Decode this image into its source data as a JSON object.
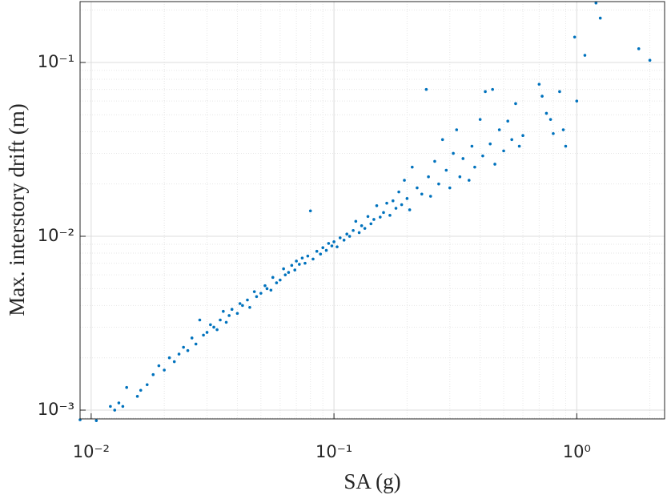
{
  "chart_data": {
    "type": "scatter",
    "xlabel": "SA (g)",
    "ylabel": "Max. interstory drift (m)",
    "xscale": "log",
    "yscale": "log",
    "grid": true,
    "minor_grid": true,
    "xlim": [
      0.009,
      2.3
    ],
    "ylim": [
      0.00089,
      0.224
    ],
    "xticks": [
      {
        "value": 0.01,
        "label": "10⁻²"
      },
      {
        "value": 0.1,
        "label": "10⁻¹"
      },
      {
        "value": 1,
        "label": "10⁰"
      }
    ],
    "yticks": [
      {
        "value": 0.001,
        "label": "10⁻³"
      },
      {
        "value": 0.01,
        "label": "10⁻²"
      },
      {
        "value": 0.1,
        "label": "10⁻¹"
      }
    ],
    "color": "#0072bd",
    "x": [
      0.009,
      0.0105,
      0.012,
      0.0125,
      0.013,
      0.0135,
      0.014,
      0.0155,
      0.016,
      0.017,
      0.018,
      0.019,
      0.02,
      0.021,
      0.022,
      0.023,
      0.024,
      0.025,
      0.026,
      0.027,
      0.028,
      0.029,
      0.03,
      0.031,
      0.032,
      0.033,
      0.034,
      0.035,
      0.036,
      0.037,
      0.038,
      0.04,
      0.041,
      0.042,
      0.044,
      0.045,
      0.047,
      0.048,
      0.05,
      0.052,
      0.053,
      0.055,
      0.056,
      0.058,
      0.06,
      0.062,
      0.063,
      0.065,
      0.067,
      0.069,
      0.07,
      0.072,
      0.074,
      0.076,
      0.078,
      0.08,
      0.082,
      0.085,
      0.088,
      0.09,
      0.093,
      0.095,
      0.098,
      0.1,
      0.103,
      0.106,
      0.11,
      0.113,
      0.116,
      0.12,
      0.123,
      0.127,
      0.13,
      0.134,
      0.138,
      0.142,
      0.146,
      0.15,
      0.155,
      0.16,
      0.165,
      0.17,
      0.175,
      0.18,
      0.185,
      0.19,
      0.195,
      0.2,
      0.205,
      0.21,
      0.22,
      0.23,
      0.24,
      0.245,
      0.25,
      0.26,
      0.27,
      0.28,
      0.29,
      0.3,
      0.31,
      0.32,
      0.33,
      0.34,
      0.36,
      0.37,
      0.38,
      0.4,
      0.41,
      0.42,
      0.44,
      0.45,
      0.46,
      0.48,
      0.5,
      0.52,
      0.54,
      0.56,
      0.58,
      0.6,
      0.7,
      0.72,
      0.75,
      0.78,
      0.8,
      0.85,
      0.88,
      0.9,
      0.98,
      1.0,
      1.08,
      1.2,
      1.25,
      1.8,
      2.0
    ],
    "y": [
      0.00088,
      0.00087,
      0.00105,
      0.001,
      0.0011,
      0.00105,
      0.00135,
      0.0012,
      0.0013,
      0.0014,
      0.0016,
      0.0018,
      0.0017,
      0.002,
      0.0019,
      0.0021,
      0.0023,
      0.0022,
      0.0026,
      0.0024,
      0.0033,
      0.0027,
      0.0028,
      0.0031,
      0.003,
      0.0029,
      0.0033,
      0.0037,
      0.0032,
      0.0035,
      0.0038,
      0.0036,
      0.0041,
      0.004,
      0.0043,
      0.0039,
      0.0048,
      0.0045,
      0.0047,
      0.0052,
      0.005,
      0.0049,
      0.0058,
      0.0054,
      0.0056,
      0.0065,
      0.006,
      0.0062,
      0.0068,
      0.0064,
      0.0072,
      0.0069,
      0.0075,
      0.007,
      0.0077,
      0.014,
      0.0074,
      0.0082,
      0.0079,
      0.0086,
      0.0083,
      0.0091,
      0.0088,
      0.0093,
      0.0087,
      0.0098,
      0.0095,
      0.0103,
      0.01,
      0.0108,
      0.0122,
      0.0105,
      0.0115,
      0.0111,
      0.013,
      0.0118,
      0.0125,
      0.015,
      0.0129,
      0.0137,
      0.0155,
      0.0132,
      0.016,
      0.0145,
      0.018,
      0.0152,
      0.021,
      0.0165,
      0.0142,
      0.025,
      0.019,
      0.0175,
      0.07,
      0.022,
      0.017,
      0.027,
      0.02,
      0.036,
      0.024,
      0.019,
      0.03,
      0.041,
      0.022,
      0.028,
      0.021,
      0.033,
      0.025,
      0.047,
      0.029,
      0.068,
      0.034,
      0.07,
      0.026,
      0.041,
      0.031,
      0.046,
      0.036,
      0.058,
      0.033,
      0.038,
      0.075,
      0.064,
      0.051,
      0.047,
      0.039,
      0.068,
      0.041,
      0.033,
      0.14,
      0.06,
      0.11,
      0.22,
      0.18,
      0.12,
      0.103
    ]
  }
}
